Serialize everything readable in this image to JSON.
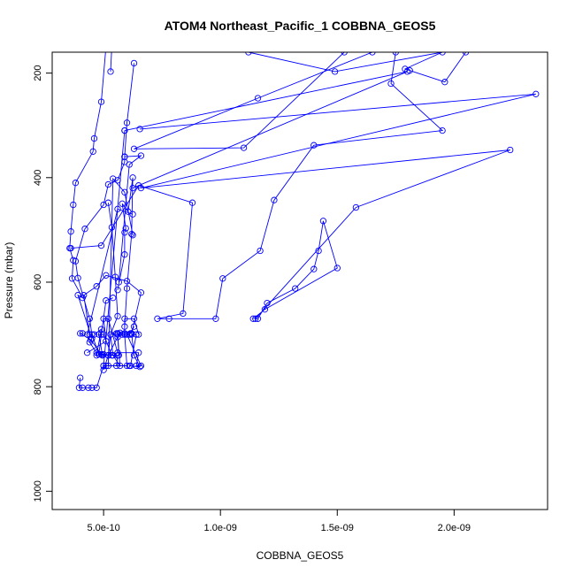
{
  "chart_data": {
    "type": "line",
    "title": "ATOM4 Northeast_Pacific_1 COBBNA_GEOS5",
    "xlabel": "COBBNA_GEOS5",
    "ylabel": "Pressure (mbar)",
    "xlim": [
      2.8e-10,
      2.4e-09
    ],
    "ylim": [
      1035,
      160
    ],
    "y_inverted": true,
    "grid": false,
    "legend": "none",
    "series_color": "#0000ff",
    "marker": "open-circle",
    "xticks": [
      {
        "value": 5e-10,
        "label": "5.0e-10"
      },
      {
        "value": 1e-09,
        "label": "1.0e-09"
      },
      {
        "value": 1.5e-09,
        "label": "1.5e-09"
      },
      {
        "value": 2e-09,
        "label": "2.0e-09"
      }
    ],
    "yticks": [
      {
        "value": 200,
        "label": "200"
      },
      {
        "value": 400,
        "label": "400"
      },
      {
        "value": 600,
        "label": "600"
      },
      {
        "value": 800,
        "label": "800"
      },
      {
        "value": 1000,
        "label": "1000"
      }
    ],
    "series": [
      {
        "points": [
          [
            5.3e-10,
            197
          ],
          [
            5.35e-10,
            150
          ],
          [
            5.1e-10,
            150
          ],
          [
            4.9e-10,
            255
          ],
          [
            4.6e-10,
            325
          ],
          [
            4.55e-10,
            350
          ],
          [
            3.8e-10,
            410
          ],
          [
            3.7e-10,
            452
          ],
          [
            3.6e-10,
            503
          ],
          [
            3.55e-10,
            535
          ],
          [
            3.7e-10,
            558
          ],
          [
            3.65e-10,
            593
          ],
          [
            4.1e-10,
            630
          ],
          [
            3.9e-10,
            625
          ],
          [
            4.5e-10,
            708
          ],
          [
            4.4e-10,
            715
          ],
          [
            4.7e-10,
            735
          ],
          [
            5e-10,
            738
          ]
        ]
      },
      {
        "points": [
          [
            6.3e-10,
            181
          ],
          [
            6e-10,
            295
          ],
          [
            5.9e-10,
            360
          ],
          [
            5.9e-10,
            370
          ],
          [
            5.6e-10,
            405
          ],
          [
            5.2e-10,
            413
          ],
          [
            5e-10,
            452
          ],
          [
            4.2e-10,
            498
          ],
          [
            3.8e-10,
            560
          ],
          [
            3.9e-10,
            592
          ],
          [
            4.4e-10,
            670
          ],
          [
            4.5e-10,
            700
          ],
          [
            4.8e-10,
            738
          ],
          [
            5.2e-10,
            740
          ],
          [
            5e-10,
            768
          ]
        ]
      },
      {
        "points": [
          [
            3.6e-10,
            535
          ],
          [
            4.9e-10,
            530
          ],
          [
            6.5e-10,
            415
          ],
          [
            8.8e-10,
            448
          ],
          [
            8.4e-10,
            660
          ],
          [
            7.3e-10,
            670
          ],
          [
            7.8e-10,
            670
          ],
          [
            9.8e-10,
            670
          ],
          [
            1.01e-09,
            593
          ],
          [
            1.17e-09,
            540
          ],
          [
            1.23e-09,
            443
          ],
          [
            1.4e-09,
            338
          ],
          [
            1.95e-09,
            310
          ],
          [
            1.73e-09,
            220
          ],
          [
            1.75e-09,
            160
          ]
        ]
      },
      {
        "points": [
          [
            6.1e-10,
            760
          ],
          [
            6.55e-10,
            762
          ],
          [
            6.3e-10,
            740
          ],
          [
            6.2e-10,
            698
          ],
          [
            6.6e-10,
            620
          ],
          [
            6e-10,
            598
          ],
          [
            5.1e-10,
            587
          ],
          [
            4.7e-10,
            608
          ],
          [
            4.15e-10,
            625
          ],
          [
            4.4e-10,
            700
          ]
        ]
      },
      {
        "points": [
          [
            4.1e-10,
            698
          ],
          [
            4e-10,
            698
          ],
          [
            4.45e-10,
            710
          ],
          [
            4.9e-10,
            738
          ],
          [
            5.6e-10,
            740
          ],
          [
            5.55e-10,
            760
          ],
          [
            5e-10,
            760
          ],
          [
            4.7e-10,
            802
          ],
          [
            4.5e-10,
            802
          ],
          [
            4.35e-10,
            802
          ],
          [
            4.1e-10,
            802
          ],
          [
            3.95e-10,
            802
          ],
          [
            4e-10,
            783
          ]
        ]
      },
      {
        "points": [
          [
            4.3e-10,
            735
          ],
          [
            5.1e-10,
            713
          ],
          [
            5e-10,
            670
          ],
          [
            5.2e-10,
            670
          ],
          [
            5.6e-10,
            735
          ],
          [
            6.5e-10,
            735
          ],
          [
            6.4e-10,
            760
          ],
          [
            6.6e-10,
            760
          ],
          [
            6e-10,
            700
          ],
          [
            5.7e-10,
            697
          ]
        ]
      },
      {
        "points": [
          [
            6.55e-10,
            307
          ],
          [
            2.35e-09,
            240
          ],
          [
            6.6e-10,
            420
          ],
          [
            2.24e-09,
            347
          ],
          [
            1.58e-09,
            457
          ],
          [
            1.15e-09,
            670
          ],
          [
            1.16e-09,
            670
          ],
          [
            1.2e-09,
            640
          ],
          [
            1.32e-09,
            612
          ],
          [
            1.4e-09,
            575
          ],
          [
            1.42e-09,
            540
          ],
          [
            1.44e-09,
            483
          ],
          [
            1.5e-09,
            573
          ],
          [
            1.19e-09,
            652
          ],
          [
            1.14e-09,
            670
          ]
        ]
      },
      {
        "points": [
          [
            5.6e-10,
            615
          ],
          [
            5.9e-10,
            547
          ],
          [
            5.9e-10,
            505
          ],
          [
            5.95e-10,
            497
          ],
          [
            5.8e-10,
            450
          ],
          [
            6.05e-10,
            465
          ],
          [
            6.25e-10,
            400
          ],
          [
            6.2e-10,
            508
          ],
          [
            6e-10,
            612
          ],
          [
            5.9e-10,
            685
          ]
        ]
      },
      {
        "points": [
          [
            5.1e-10,
            760
          ],
          [
            6e-10,
            760
          ],
          [
            5.9e-10,
            700
          ],
          [
            5.6e-10,
            700
          ],
          [
            5.7e-10,
            760
          ],
          [
            5.4e-10,
            740
          ],
          [
            5.3e-10,
            700
          ],
          [
            5.6e-10,
            665
          ],
          [
            5.5e-10,
            590
          ],
          [
            5.35e-10,
            495
          ],
          [
            5.2e-10,
            448
          ]
        ]
      },
      {
        "points": [
          [
            5.8e-10,
            700
          ],
          [
            5.6e-10,
            698
          ],
          [
            5.65e-10,
            740
          ],
          [
            5.35e-10,
            740
          ],
          [
            5e-10,
            700
          ],
          [
            4.8e-10,
            700
          ],
          [
            4.95e-10,
            740
          ],
          [
            5.2e-10,
            740
          ],
          [
            5.3e-10,
            700
          ],
          [
            5.55e-10,
            698
          ]
        ]
      },
      {
        "points": [
          [
            6.1e-10,
            700
          ],
          [
            6.3e-10,
            685
          ],
          [
            6.15e-10,
            698
          ],
          [
            5.9e-10,
            698
          ],
          [
            5.9e-10,
            670
          ],
          [
            6.3e-10,
            670
          ],
          [
            6.5e-10,
            700
          ]
        ]
      },
      {
        "points": [
          [
            4.6e-10,
            700
          ],
          [
            4.9e-10,
            690
          ],
          [
            4.7e-10,
            740
          ],
          [
            5.2e-10,
            740
          ],
          [
            5.6e-10,
            705
          ]
        ]
      },
      {
        "points": [
          [
            5.4e-10,
            630
          ],
          [
            5.1e-10,
            635
          ],
          [
            4.9e-10,
            700
          ],
          [
            4.8e-10,
            738
          ],
          [
            4.95e-10,
            740
          ]
        ]
      },
      {
        "points": [
          [
            6.15e-10,
            760
          ],
          [
            6.4e-10,
            700
          ],
          [
            6.2e-10,
            700
          ]
        ]
      },
      {
        "points": [
          [
            1.12e-09,
            160
          ],
          [
            1.49e-09,
            197
          ],
          [
            1.95e-09,
            160
          ],
          [
            1.79e-09,
            192
          ],
          [
            1.81e-09,
            195
          ],
          [
            1.96e-09,
            217
          ],
          [
            2.05e-09,
            160
          ]
        ]
      },
      {
        "points": [
          [
            5e-10,
            760
          ],
          [
            5.9e-10,
            310
          ]
        ]
      },
      {
        "points": [
          [
            5.2e-10,
            760
          ],
          [
            5.4e-10,
            402
          ],
          [
            5.9e-10,
            428
          ],
          [
            6.25e-10,
            510
          ]
        ]
      },
      {
        "points": [
          [
            4.3e-10,
            700
          ],
          [
            5.6e-10,
            460
          ],
          [
            6.25e-10,
            470
          ]
        ]
      },
      {
        "points": [
          [
            5.9e-10,
            310
          ],
          [
            1.8e-09,
            197
          ],
          [
            6.25e-10,
            420
          ]
        ]
      },
      {
        "points": [
          [
            1.65e-09,
            160
          ],
          [
            1.16e-09,
            248
          ],
          [
            6.3e-10,
            345
          ],
          [
            1.1e-09,
            343
          ],
          [
            1.53e-09,
            160
          ]
        ]
      },
      {
        "points": [
          [
            5.9e-10,
            360
          ],
          [
            6.6e-10,
            358
          ],
          [
            6.1e-10,
            375
          ],
          [
            5.65e-10,
            600
          ]
        ]
      }
    ]
  }
}
